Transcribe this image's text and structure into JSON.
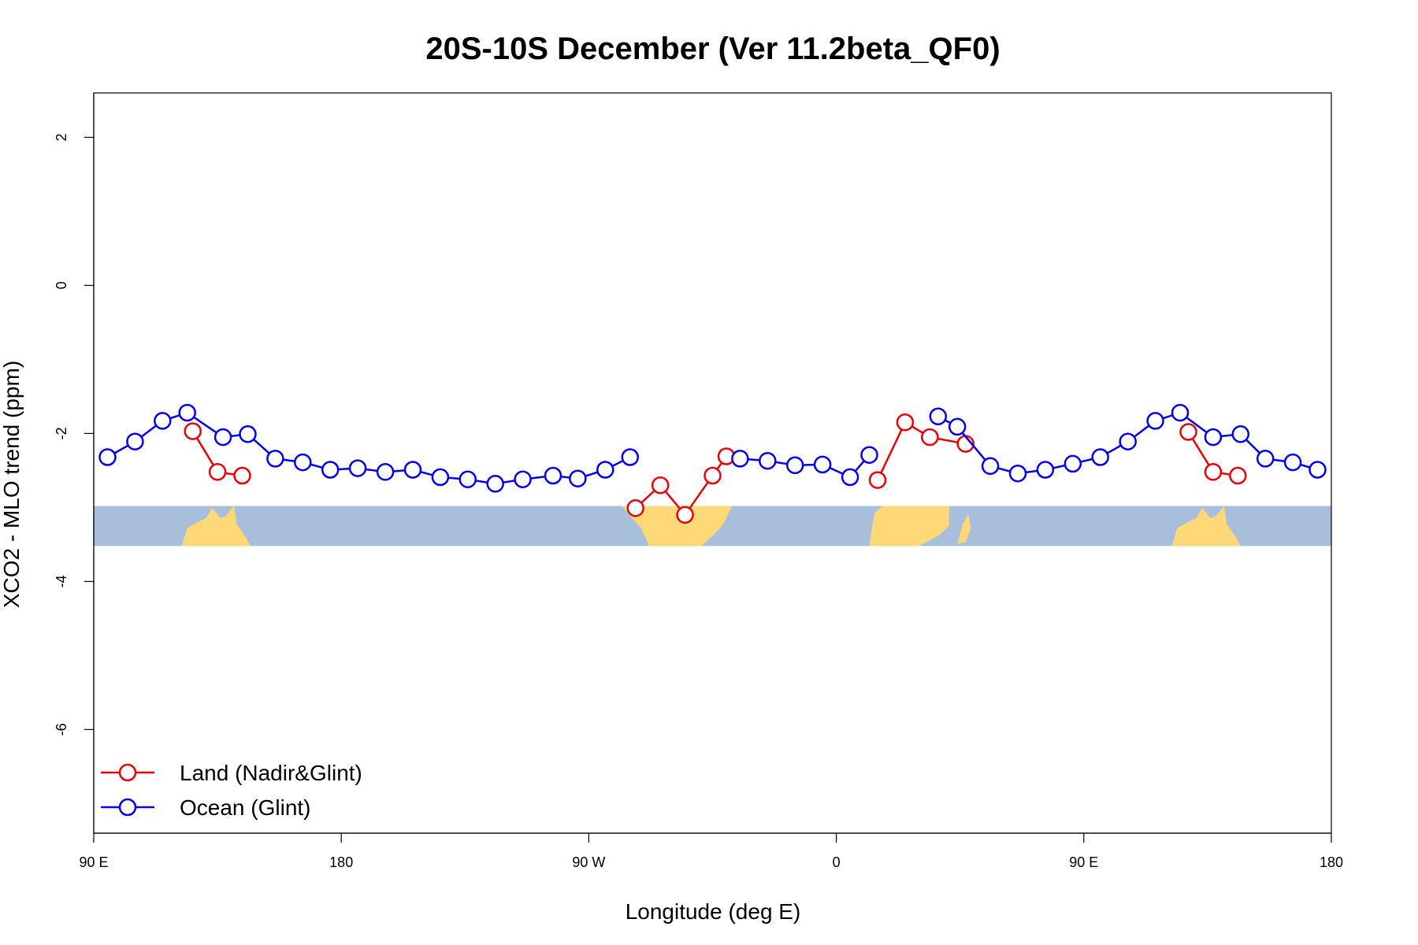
{
  "chart_data": {
    "type": "line",
    "title": "20S-10S December (Ver 11.2beta_QF0)",
    "xlabel": "Longitude (deg E)",
    "ylabel": "XCO2 - MLO trend (ppm)",
    "xlim": [
      90,
      540
    ],
    "ylim": [
      -7.4,
      2.6
    ],
    "x_ticks": [
      {
        "value": 90,
        "label": "90 E"
      },
      {
        "value": 180,
        "label": "180"
      },
      {
        "value": 270,
        "label": "90 W"
      },
      {
        "value": 360,
        "label": "0"
      },
      {
        "value": 450,
        "label": "90 E"
      },
      {
        "value": 540,
        "label": "180"
      }
    ],
    "y_ticks": [
      {
        "value": 2,
        "label": "2"
      },
      {
        "value": 0,
        "label": "0"
      },
      {
        "value": -2,
        "label": "-2"
      },
      {
        "value": -4,
        "label": "-4"
      },
      {
        "value": -6,
        "label": "-6"
      }
    ],
    "map_band": {
      "y_top": -2.98,
      "y_bottom": -3.52,
      "ocean_color": "#a8bfdc",
      "land_color": "#ffd878"
    },
    "legend_position": "bottom-left",
    "series": [
      {
        "name": "Land (Nadir&Glint)",
        "color": "#e8000b",
        "segments": [
          [
            [
              126,
              -1.97
            ],
            [
              135,
              -2.52
            ],
            [
              144,
              -2.57
            ]
          ],
          [
            [
              287,
              -3.01
            ],
            [
              296,
              -2.7
            ],
            [
              305,
              -3.1
            ],
            [
              315,
              -2.57
            ],
            [
              320,
              -2.31
            ]
          ],
          [
            [
              375,
              -2.63
            ],
            [
              385,
              -1.85
            ],
            [
              394,
              -2.05
            ],
            [
              407,
              -2.14
            ]
          ],
          [
            [
              488,
              -1.98
            ],
            [
              497,
              -2.52
            ],
            [
              506,
              -2.57
            ]
          ]
        ]
      },
      {
        "name": "Ocean (Glint)",
        "color": "#0000ee",
        "segments": [
          [
            [
              95,
              -2.32
            ],
            [
              105,
              -2.11
            ],
            [
              115,
              -1.83
            ],
            [
              124,
              -1.72
            ],
            [
              137,
              -2.05
            ],
            [
              146,
              -2.01
            ],
            [
              156,
              -2.34
            ],
            [
              166,
              -2.39
            ],
            [
              176,
              -2.49
            ],
            [
              186,
              -2.47
            ],
            [
              196,
              -2.52
            ],
            [
              206,
              -2.49
            ],
            [
              216,
              -2.59
            ],
            [
              226,
              -2.62
            ],
            [
              236,
              -2.68
            ],
            [
              246,
              -2.62
            ],
            [
              257,
              -2.57
            ],
            [
              266,
              -2.61
            ],
            [
              276,
              -2.49
            ],
            [
              285,
              -2.32
            ]
          ],
          [
            [
              325,
              -2.34
            ],
            [
              335,
              -2.37
            ],
            [
              345,
              -2.43
            ],
            [
              355,
              -2.42
            ],
            [
              365,
              -2.59
            ],
            [
              372,
              -2.29
            ]
          ],
          [
            [
              397,
              -1.77
            ],
            [
              404,
              -1.91
            ],
            [
              416,
              -2.44
            ],
            [
              426,
              -2.54
            ],
            [
              436,
              -2.49
            ],
            [
              446,
              -2.41
            ],
            [
              456,
              -2.32
            ],
            [
              466,
              -2.11
            ],
            [
              476,
              -1.83
            ],
            [
              485,
              -1.72
            ],
            [
              497,
              -2.05
            ],
            [
              507,
              -2.01
            ],
            [
              516,
              -2.34
            ],
            [
              526,
              -2.39
            ],
            [
              535,
              -2.49
            ]
          ]
        ]
      }
    ]
  }
}
